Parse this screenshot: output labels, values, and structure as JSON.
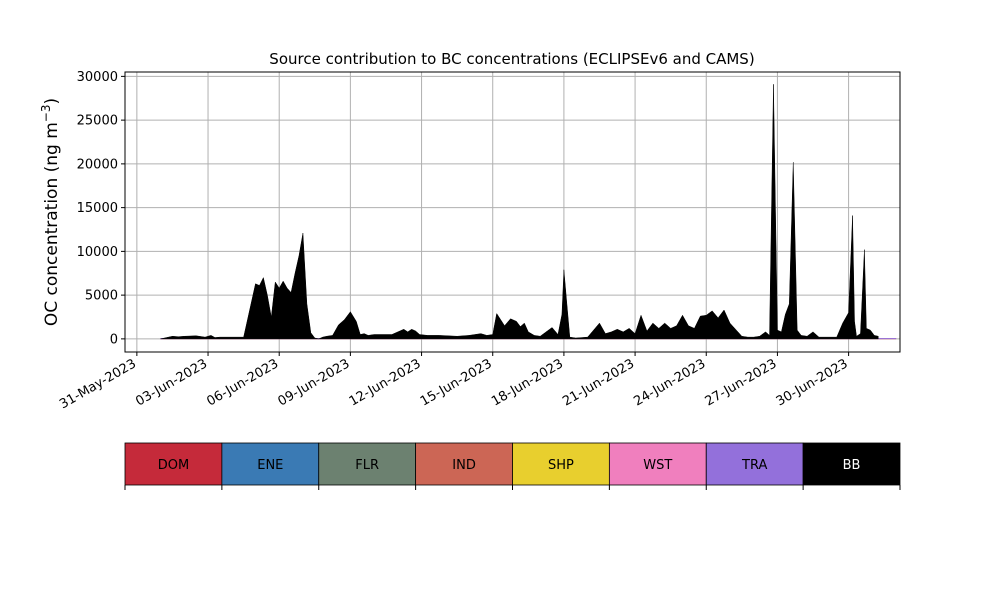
{
  "chart_data": {
    "type": "area",
    "title": "Source contribution to BC concentrations (ECLIPSEv6 and CAMS)",
    "ylabel": "OC concentration (ng m",
    "ylabel_sup": "−3",
    "ylabel_close": ")",
    "xlabel": "",
    "ylim": [
      -1500,
      30500
    ],
    "xlim": [
      "2023-05-30T12:00",
      "2023-07-02T04:00"
    ],
    "y_ticks": [
      0,
      5000,
      10000,
      15000,
      20000,
      25000,
      30000
    ],
    "x_ticks": [
      "2023-05-31",
      "2023-06-03",
      "2023-06-06",
      "2023-06-09",
      "2023-06-12",
      "2023-06-15",
      "2023-06-18",
      "2023-06-21",
      "2023-06-24",
      "2023-06-27",
      "2023-06-30"
    ],
    "x_tick_labels": [
      "31-May-2023",
      "03-Jun-2023",
      "06-Jun-2023",
      "09-Jun-2023",
      "12-Jun-2023",
      "15-Jun-2023",
      "18-Jun-2023",
      "21-Jun-2023",
      "24-Jun-2023",
      "27-Jun-2023",
      "30-Jun-2023"
    ],
    "grid": true,
    "legend_position": "below",
    "series": [
      {
        "name": "DOM",
        "color": "#c52a3a",
        "x": [
          "2023-06-01T00:00",
          "2023-07-02T00:00"
        ],
        "values": [
          40,
          40
        ]
      },
      {
        "name": "ENE",
        "color": "#3a7ab4",
        "x": [
          "2023-06-01T00:00",
          "2023-07-02T00:00"
        ],
        "values": [
          10,
          10
        ]
      },
      {
        "name": "FLR",
        "color": "#6c8170",
        "x": [
          "2023-06-01T00:00",
          "2023-07-02T00:00"
        ],
        "values": [
          5,
          5
        ]
      },
      {
        "name": "IND",
        "color": "#cc6655",
        "x": [
          "2023-06-01T00:00",
          "2023-07-02T00:00"
        ],
        "values": [
          30,
          30
        ]
      },
      {
        "name": "SHP",
        "color": "#e8cf2e",
        "x": [
          "2023-06-01T00:00",
          "2023-07-02T00:00"
        ],
        "values": [
          10,
          10
        ]
      },
      {
        "name": "WST",
        "color": "#f07fbe",
        "x": [
          "2023-06-01T00:00",
          "2023-07-02T00:00"
        ],
        "values": [
          5,
          5
        ]
      },
      {
        "name": "TRA",
        "color": "#9370db",
        "x": [
          "2023-06-01T00:00",
          "2023-07-02T00:00"
        ],
        "values": [
          60,
          60
        ]
      },
      {
        "name": "BB",
        "color": "#000000",
        "x": [
          "2023-06-01T00:00",
          "2023-06-01T12:00",
          "2023-06-01T18:00",
          "2023-06-02T00:00",
          "2023-06-02T12:00",
          "2023-06-02T21:00",
          "2023-06-03T03:00",
          "2023-06-03T07:00",
          "2023-06-03T12:00",
          "2023-06-04T12:00",
          "2023-06-05T00:00",
          "2023-06-05T04:00",
          "2023-06-05T08:00",
          "2023-06-05T12:00",
          "2023-06-05T16:00",
          "2023-06-05T20:00",
          "2023-06-06T00:00",
          "2023-06-06T04:00",
          "2023-06-06T08:00",
          "2023-06-06T12:00",
          "2023-06-06T16:00",
          "2023-06-06T20:00",
          "2023-06-07T00:00",
          "2023-06-07T04:00",
          "2023-06-07T08:00",
          "2023-06-07T12:00",
          "2023-06-07T16:00",
          "2023-06-07T20:00",
          "2023-06-08T00:00",
          "2023-06-08T06:00",
          "2023-06-08T12:00",
          "2023-06-08T18:00",
          "2023-06-09T00:00",
          "2023-06-09T06:00",
          "2023-06-09T10:00",
          "2023-06-09T14:00",
          "2023-06-09T18:00",
          "2023-06-10T00:00",
          "2023-06-10T18:00",
          "2023-06-11T06:00",
          "2023-06-11T10:00",
          "2023-06-11T14:00",
          "2023-06-11T18:00",
          "2023-06-11T22:00",
          "2023-06-12T06:00",
          "2023-06-12T18:00",
          "2023-06-13T12:00",
          "2023-06-14T00:00",
          "2023-06-14T12:00",
          "2023-06-14T18:00",
          "2023-06-15T00:00",
          "2023-06-15T04:00",
          "2023-06-15T08:00",
          "2023-06-15T12:00",
          "2023-06-15T18:00",
          "2023-06-16T00:00",
          "2023-06-16T04:00",
          "2023-06-16T08:00",
          "2023-06-16T12:00",
          "2023-06-16T18:00",
          "2023-06-17T00:00",
          "2023-06-17T12:00",
          "2023-06-17T18:00",
          "2023-06-17T22:00",
          "2023-06-18T00:00",
          "2023-06-18T03:00",
          "2023-06-18T06:00",
          "2023-06-18T12:00",
          "2023-06-19T00:00",
          "2023-06-19T12:00",
          "2023-06-19T18:00",
          "2023-06-20T00:00",
          "2023-06-20T06:00",
          "2023-06-20T12:00",
          "2023-06-20T18:00",
          "2023-06-21T00:00",
          "2023-06-21T06:00",
          "2023-06-21T12:00",
          "2023-06-21T18:00",
          "2023-06-22T00:00",
          "2023-06-22T06:00",
          "2023-06-22T12:00",
          "2023-06-22T18:00",
          "2023-06-23T00:00",
          "2023-06-23T06:00",
          "2023-06-23T12:00",
          "2023-06-23T18:00",
          "2023-06-24T00:00",
          "2023-06-24T06:00",
          "2023-06-24T12:00",
          "2023-06-24T18:00",
          "2023-06-25T00:00",
          "2023-06-25T12:00",
          "2023-06-25T18:00",
          "2023-06-26T00:00",
          "2023-06-26T06:00",
          "2023-06-26T12:00",
          "2023-06-26T16:00",
          "2023-06-26T20:00",
          "2023-06-27T00:00",
          "2023-06-27T04:00",
          "2023-06-27T08:00",
          "2023-06-27T12:00",
          "2023-06-27T16:00",
          "2023-06-27T20:00",
          "2023-06-28T00:00",
          "2023-06-28T06:00",
          "2023-06-28T12:00",
          "2023-06-28T18:00",
          "2023-06-29T00:00",
          "2023-06-29T12:00",
          "2023-06-29T18:00",
          "2023-06-30T00:00",
          "2023-06-30T04:00",
          "2023-06-30T06:00",
          "2023-06-30T08:00",
          "2023-06-30T12:00",
          "2023-06-30T16:00",
          "2023-06-30T18:00",
          "2023-06-30T22:00",
          "2023-07-01T02:00",
          "2023-07-01T06:00"
        ],
        "values": [
          0,
          300,
          250,
          300,
          350,
          200,
          400,
          150,
          200,
          200,
          6300,
          6100,
          7000,
          5000,
          2500,
          6500,
          5800,
          6600,
          5800,
          5300,
          7500,
          9500,
          12100,
          4000,
          700,
          100,
          0,
          200,
          300,
          400,
          1600,
          2200,
          3100,
          2000,
          500,
          600,
          400,
          500,
          500,
          1100,
          800,
          1100,
          900,
          500,
          400,
          400,
          300,
          400,
          600,
          400,
          500,
          2900,
          2200,
          1500,
          2300,
          2000,
          1400,
          1800,
          800,
          400,
          300,
          1300,
          500,
          2800,
          7900,
          4000,
          200,
          100,
          200,
          1800,
          600,
          800,
          1100,
          800,
          1200,
          600,
          2700,
          900,
          1800,
          1200,
          1800,
          1200,
          1500,
          2700,
          1500,
          1200,
          2600,
          2700,
          3200,
          2400,
          3300,
          1800,
          300,
          200,
          200,
          300,
          800,
          400,
          29100,
          1000,
          800,
          2800,
          4000,
          20200,
          1000,
          400,
          300,
          800,
          200,
          200,
          200,
          1800,
          3000,
          14100,
          2000,
          300,
          600,
          10200,
          1200,
          1000,
          400,
          300
        ]
      }
    ]
  }
}
